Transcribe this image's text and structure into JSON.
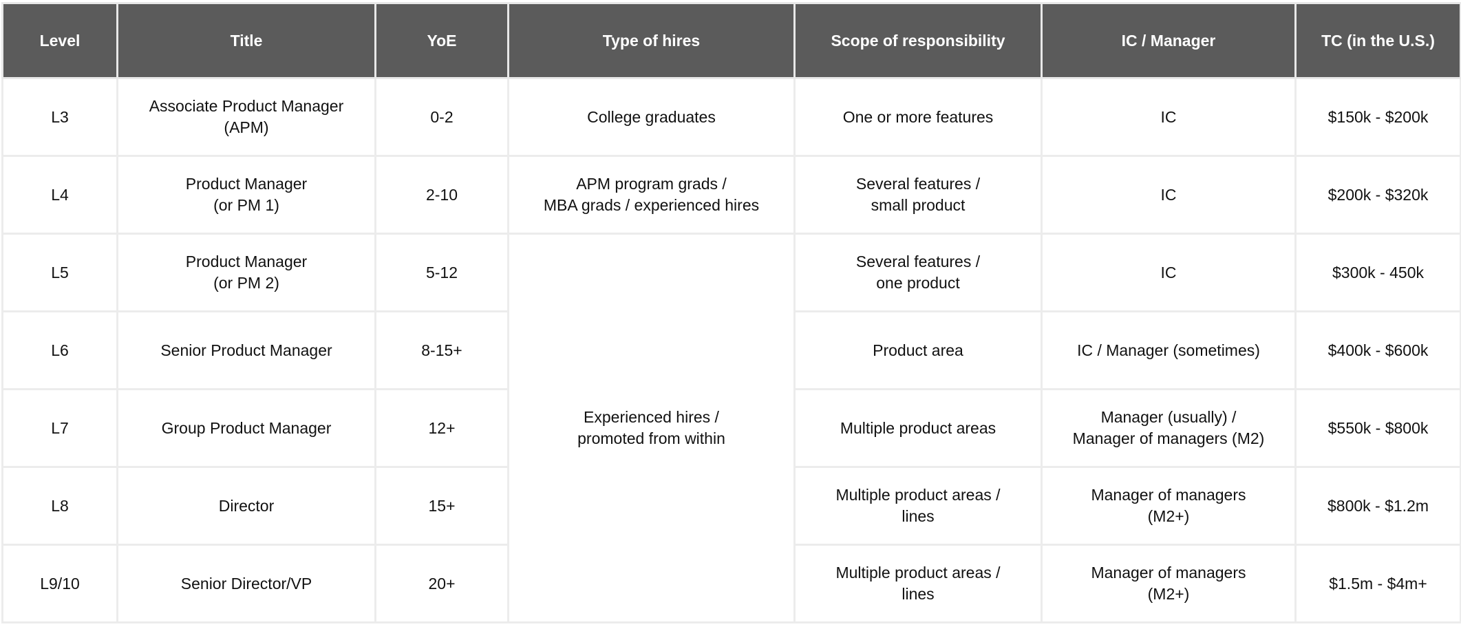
{
  "headers": [
    "Level",
    "Title",
    "YoE",
    "Type of hires",
    "Scope of responsibility",
    "IC / Manager",
    "TC (in the U.S.)"
  ],
  "rows": [
    {
      "level": "L3",
      "title": "Associate Product Manager\n(APM)",
      "yoe": "0-2",
      "hires": "College graduates",
      "scope": "One or more features",
      "role": "IC",
      "tc": "$150k - $200k"
    },
    {
      "level": "L4",
      "title": "Product Manager\n(or PM 1)",
      "yoe": "2-10",
      "hires": "APM program grads /\nMBA grads / experienced hires",
      "scope": "Several features /\nsmall product",
      "role": "IC",
      "tc": "$200k - $320k"
    },
    {
      "level": "L5",
      "title": "Product Manager\n(or PM 2)",
      "yoe": "5-12",
      "hires": "Experienced hires /\npromoted from within",
      "scope": "Several features /\none product",
      "role": "IC",
      "tc": "$300k - 450k"
    },
    {
      "level": "L6",
      "title": "Senior Product Manager",
      "yoe": "8-15+",
      "scope": "Product area",
      "role": "IC / Manager (sometimes)",
      "tc": "$400k - $600k"
    },
    {
      "level": "L7",
      "title": "Group Product Manager",
      "yoe": "12+",
      "scope": "Multiple product areas",
      "role": "Manager (usually) /\nManager of managers (M2)",
      "tc": "$550k - $800k"
    },
    {
      "level": "L8",
      "title": "Director",
      "yoe": "15+",
      "scope": "Multiple product areas /\nlines",
      "role": "Manager of managers\n(M2+)",
      "tc": "$800k - $1.2m"
    },
    {
      "level": "L9/10",
      "title": "Senior Director/VP",
      "yoe": "20+",
      "scope": "Multiple product areas /\nlines",
      "role": "Manager of managers\n(M2+)",
      "tc": "$1.5m - $4m+"
    }
  ]
}
